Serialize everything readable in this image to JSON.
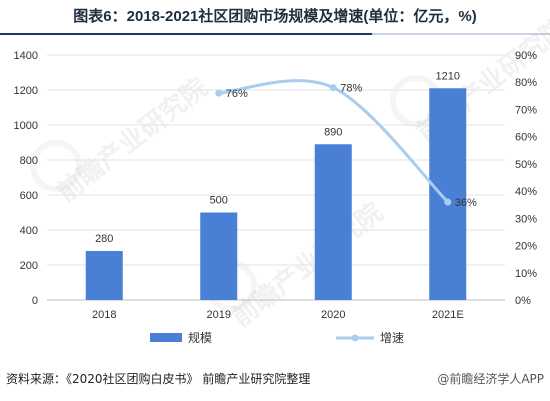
{
  "title": "图表6：2018-2021社区团购市场规模及增速(单位：亿元，%)",
  "source": "资料来源：《2020社区团购白皮书》 前瞻产业研究院整理",
  "brand": "@前瞻经济学人APP",
  "watermark": "前瞻产业研究院",
  "colors": {
    "bar": "#4a7fd6",
    "line": "#a9cdee",
    "text": "#333333",
    "grid": "#e3e3e3"
  },
  "chart_data": {
    "type": "bar",
    "categories": [
      "2018",
      "2019",
      "2020",
      "2021E"
    ],
    "series": [
      {
        "name": "规模",
        "type": "bar",
        "axis": "left",
        "values": [
          280,
          500,
          890,
          1210
        ]
      },
      {
        "name": "增速",
        "type": "line",
        "axis": "right",
        "values": [
          null,
          76,
          78,
          36
        ],
        "unit": "%"
      }
    ],
    "y_left": {
      "min": 0,
      "max": 1400,
      "ticks": [
        0,
        200,
        400,
        600,
        800,
        1000,
        1200,
        1400
      ]
    },
    "y_right": {
      "min": 0,
      "max": 90,
      "ticks": [
        0,
        10,
        20,
        30,
        40,
        50,
        60,
        70,
        80,
        90
      ],
      "unit": "%"
    },
    "data_labels": {
      "bars": [
        "280",
        "500",
        "890",
        "1210"
      ],
      "line": [
        "",
        "76%",
        "78%",
        "36%"
      ]
    },
    "legend_position": "bottom",
    "grid": true
  }
}
